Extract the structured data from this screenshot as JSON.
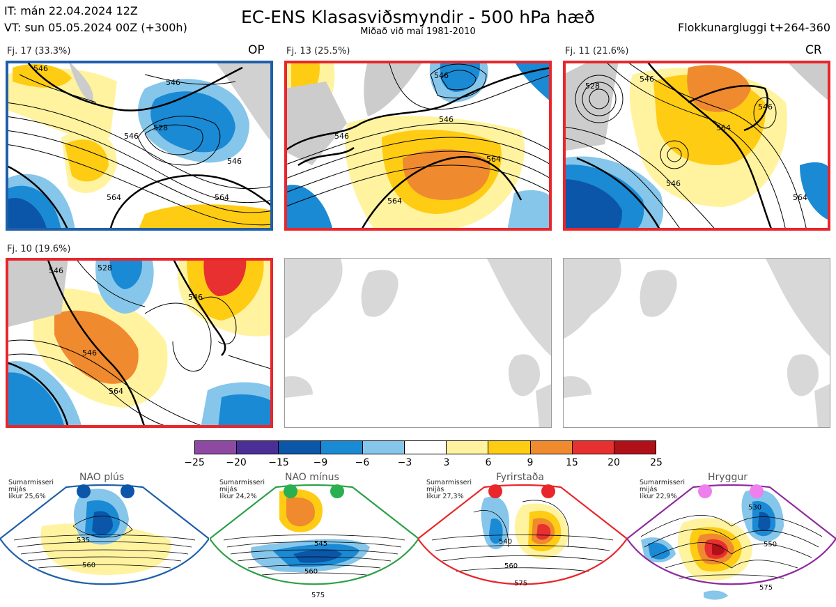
{
  "header": {
    "it_line": "IT: mán 22.04.2024 12Z",
    "vt_line": "VT: sun 05.05.2024 00Z  (+300h)",
    "title": "EC-ENS Klasasviðsmyndir - 500 hPa hæð",
    "subtitle": "Miðað við maí 1981-2010",
    "window": "Flokkunargluggi t+264-360"
  },
  "clusters": [
    {
      "label": "Fj. 17 (33.3%)",
      "tag": "OP",
      "border_color": "#1f5fa8"
    },
    {
      "label": "Fj. 13 (25.5%)",
      "tag": "",
      "border_color": "#e8262b"
    },
    {
      "label": "Fj. 11 (21.6%)",
      "tag": "CR",
      "border_color": "#e8262b"
    },
    {
      "label": "Fj. 10 (19.6%)",
      "tag": "",
      "border_color": "#e8262b"
    }
  ],
  "contour_labels": {
    "p1": [
      "546",
      "546",
      "528",
      "546",
      "564",
      "564",
      "546"
    ],
    "p2": [
      "546",
      "546",
      "564",
      "564",
      "546"
    ],
    "p3": [
      "528",
      "546",
      "564",
      "546",
      "564",
      "546"
    ],
    "p4": [
      "546",
      "528",
      "546",
      "564",
      "546"
    ]
  },
  "colorbar": {
    "ticks": [
      "−25",
      "−20",
      "−15",
      "−9",
      "−6",
      "−3",
      "3",
      "6",
      "9",
      "15",
      "20",
      "25"
    ],
    "colors": [
      "#8e4aa3",
      "#4b2f96",
      "#0b56a8",
      "#1a8ad4",
      "#86c6ea",
      "#ffffff",
      "#fff3a0",
      "#ffcc14",
      "#f08a2e",
      "#e83030",
      "#b01018"
    ]
  },
  "regimes": [
    {
      "name": "NAO plús",
      "info": [
        "Sumarmisseri",
        "mijás",
        "líkur 25,6%"
      ],
      "color": "#1f5fa8",
      "dot_color": "#0b56a8",
      "contours": [
        "535",
        "560"
      ]
    },
    {
      "name": "NAO mínus",
      "info": [
        "Sumarmisseri",
        "mijás",
        "líkur 24,2%"
      ],
      "color": "#2ca048",
      "dot_color": "#2ab050",
      "contours": [
        "545",
        "560",
        "575"
      ]
    },
    {
      "name": "Fyrirstaða",
      "info": [
        "Sumarmisseri",
        "mijás",
        "líkur 27,3%"
      ],
      "color": "#e8262b",
      "dot_color": "#e8262b",
      "contours": [
        "540",
        "560",
        "575"
      ]
    },
    {
      "name": "Hryggur",
      "info": [
        "Sumarmisseri",
        "mijás",
        "líkur 22,9%"
      ],
      "color": "#8e2a9e",
      "dot_color": "#ee80ee",
      "contours": [
        "530",
        "550",
        "575"
      ]
    }
  ]
}
